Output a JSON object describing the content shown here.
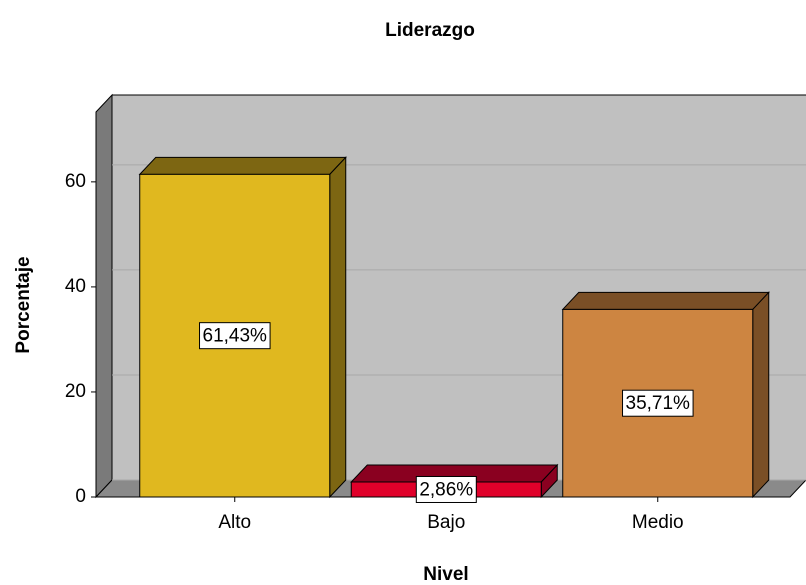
{
  "chart_data": {
    "type": "bar3d",
    "title": "Liderazgo",
    "x_label": "Nivel",
    "y_label": "Porcentaje",
    "categories": [
      "Alto",
      "Bajo",
      "Medio"
    ],
    "values": [
      61.43,
      2.86,
      35.71
    ],
    "value_labels": [
      "61,43%",
      "2,86%",
      "35,71%"
    ],
    "colors": [
      "#e0b81f",
      "#e0002a",
      "#cd8541"
    ],
    "side_colors": [
      "#7d6612",
      "#8a0020",
      "#7a4f26"
    ],
    "ylim": [
      0,
      73.3
    ],
    "yticks": [
      0,
      20,
      40,
      60
    ],
    "grid": true
  }
}
